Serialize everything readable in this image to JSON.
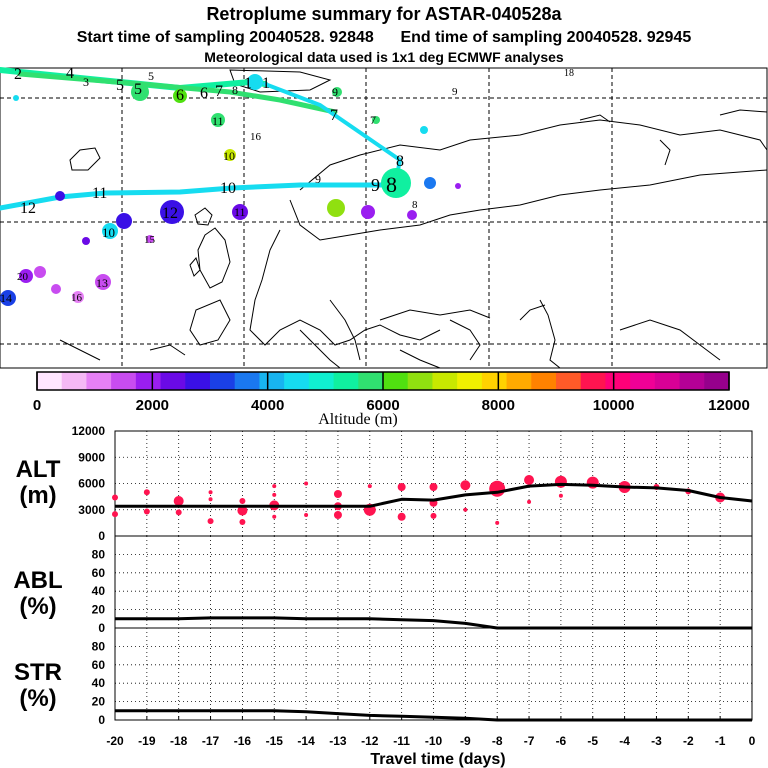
{
  "header": {
    "title": "Retroplume summary for ASTAR-040528a",
    "sampling_line": "Start time of sampling 20040528. 92848      End time of sampling 20040528. 92945",
    "met_line": "Meteorological data used is 1x1 deg ECMWF analyses"
  },
  "colorbar": {
    "label": "Altitude (m)",
    "tick_labels": [
      "0",
      "2000",
      "4000",
      "6000",
      "8000",
      "10000",
      "12000"
    ],
    "colors": [
      "#ffe6ff",
      "#f5b8f5",
      "#e680f5",
      "#c84cf0",
      "#9a1ef0",
      "#6a0ae6",
      "#3a10e6",
      "#1a40e6",
      "#1a78f0",
      "#18b4f0",
      "#16dcf0",
      "#10f0d0",
      "#10f0a0",
      "#30e070",
      "#50e010",
      "#90e010",
      "#c8e800",
      "#f0f000",
      "#ffd200",
      "#ffaa00",
      "#ff8200",
      "#ff5a28",
      "#ff1450",
      "#ff0078",
      "#f00096",
      "#d80096",
      "#b40096",
      "#96008c"
    ],
    "range": [
      0,
      12000
    ]
  },
  "map": {
    "trajectory_labels": [
      {
        "t": "1",
        "color": "#16dcf0"
      },
      {
        "t": "2",
        "color": "#10f0a0"
      },
      {
        "t": "3",
        "color": "#10f0a0"
      },
      {
        "t": "4",
        "color": "#10f0d0"
      },
      {
        "t": "5",
        "color": "#10f0a0"
      },
      {
        "t": "6",
        "color": "#50e010"
      },
      {
        "t": "7",
        "color": "#30e070"
      },
      {
        "t": "8",
        "color": "#30e070"
      },
      {
        "t": "9",
        "color": "#90e010"
      },
      {
        "t": "10",
        "color": "#16dcf0"
      },
      {
        "t": "11",
        "color": "#16dcf0"
      },
      {
        "t": "12",
        "color": "#18b4f0"
      }
    ],
    "cluster_labels": [
      {
        "t": "11",
        "color": "#30e070"
      },
      {
        "t": "10",
        "color": "#c8e800"
      },
      {
        "t": "16",
        "color": "#1a40e6"
      },
      {
        "t": "12",
        "color": "#3a10e6"
      },
      {
        "t": "11",
        "color": "#6a0ae6"
      },
      {
        "t": "13",
        "color": "#e680f5"
      },
      {
        "t": "14",
        "color": "#1a78f0"
      },
      {
        "t": "15",
        "color": "#c84cf0"
      },
      {
        "t": "16",
        "color": "#e680f5"
      },
      {
        "t": "18",
        "color": "#16dcf0"
      },
      {
        "t": "20",
        "color": "#9a1ef0"
      }
    ]
  },
  "chart_data": [
    {
      "type": "line",
      "panel": "ALT",
      "ylabel": "ALT\n(m)",
      "ylabel_line1": "ALT",
      "ylabel_line2": "(m)",
      "ylim": [
        0,
        12000
      ],
      "yticks": [
        0,
        3000,
        6000,
        9000,
        12000
      ],
      "ytick_labels": [
        "0",
        "3000",
        "6000",
        "9000",
        "12000"
      ],
      "x": [
        -20,
        -19,
        -18,
        -17,
        -16,
        -15,
        -14,
        -13,
        -12,
        -11,
        -10,
        -9,
        -8,
        -7,
        -6,
        -5,
        -4,
        -3,
        -2,
        -1,
        0
      ],
      "series": [
        {
          "name": "mean altitude",
          "values": [
            3400,
            3400,
            3400,
            3400,
            3400,
            3400,
            3400,
            3400,
            3400,
            4200,
            4100,
            4700,
            5000,
            5700,
            5900,
            5800,
            5600,
            5500,
            5200,
            4400,
            4000
          ]
        }
      ],
      "cluster_points": [
        {
          "x": -20,
          "y": 4400,
          "s": 3
        },
        {
          "x": -20,
          "y": 2500,
          "s": 3
        },
        {
          "x": -19,
          "y": 5000,
          "s": 3
        },
        {
          "x": -19,
          "y": 2800,
          "s": 3
        },
        {
          "x": -18,
          "y": 4000,
          "s": 5
        },
        {
          "x": -18,
          "y": 2700,
          "s": 3
        },
        {
          "x": -17,
          "y": 5000,
          "s": 2
        },
        {
          "x": -17,
          "y": 4200,
          "s": 2
        },
        {
          "x": -17,
          "y": 1700,
          "s": 3
        },
        {
          "x": -16,
          "y": 4000,
          "s": 3
        },
        {
          "x": -16,
          "y": 2900,
          "s": 5
        },
        {
          "x": -16,
          "y": 1600,
          "s": 3
        },
        {
          "x": -15,
          "y": 5700,
          "s": 2
        },
        {
          "x": -15,
          "y": 4700,
          "s": 2
        },
        {
          "x": -15,
          "y": 3500,
          "s": 5
        },
        {
          "x": -15,
          "y": 2200,
          "s": 2
        },
        {
          "x": -14,
          "y": 6000,
          "s": 2
        },
        {
          "x": -14,
          "y": 2400,
          "s": 2
        },
        {
          "x": -13,
          "y": 4800,
          "s": 4
        },
        {
          "x": -13,
          "y": 3400,
          "s": 4
        },
        {
          "x": -13,
          "y": 2400,
          "s": 4
        },
        {
          "x": -12,
          "y": 5700,
          "s": 2
        },
        {
          "x": -12,
          "y": 3000,
          "s": 6
        },
        {
          "x": -11,
          "y": 5600,
          "s": 4
        },
        {
          "x": -11,
          "y": 2200,
          "s": 4
        },
        {
          "x": -10,
          "y": 5600,
          "s": 4
        },
        {
          "x": -10,
          "y": 3800,
          "s": 4
        },
        {
          "x": -10,
          "y": 2300,
          "s": 3
        },
        {
          "x": -9,
          "y": 5800,
          "s": 5
        },
        {
          "x": -9,
          "y": 3000,
          "s": 2
        },
        {
          "x": -8,
          "y": 5400,
          "s": 8
        },
        {
          "x": -8,
          "y": 1500,
          "s": 2
        },
        {
          "x": -7,
          "y": 6400,
          "s": 5
        },
        {
          "x": -7,
          "y": 3900,
          "s": 2
        },
        {
          "x": -6,
          "y": 6200,
          "s": 6
        },
        {
          "x": -6,
          "y": 4600,
          "s": 2
        },
        {
          "x": -5,
          "y": 6100,
          "s": 6
        },
        {
          "x": -4,
          "y": 5600,
          "s": 6
        },
        {
          "x": -3,
          "y": 5600,
          "s": 3
        },
        {
          "x": -2,
          "y": 5100,
          "s": 3
        },
        {
          "x": -1,
          "y": 4400,
          "s": 5
        }
      ]
    },
    {
      "type": "line",
      "panel": "ABL",
      "ylabel": "ABL\n(%)",
      "ylabel_line1": "ABL",
      "ylabel_line2": "(%)",
      "ylim": [
        0,
        100
      ],
      "yticks": [
        0,
        20,
        40,
        60,
        80
      ],
      "ytick_labels": [
        "0",
        "20",
        "40",
        "60",
        "80"
      ],
      "x": [
        -20,
        -19,
        -18,
        -17,
        -16,
        -15,
        -14,
        -13,
        -12,
        -11,
        -10,
        -9,
        -8,
        -7,
        -6,
        -5,
        -4,
        -3,
        -2,
        -1,
        0
      ],
      "series": [
        {
          "name": "fraction in ABL",
          "values": [
            10,
            10,
            10,
            11,
            11,
            11,
            10,
            10,
            10,
            9,
            8,
            5,
            0,
            0,
            0,
            0,
            0,
            0,
            0,
            0,
            0
          ]
        }
      ]
    },
    {
      "type": "line",
      "panel": "STR",
      "ylabel": "STR\n(%)",
      "ylabel_line1": "STR",
      "ylabel_line2": "(%)",
      "ylim": [
        0,
        100
      ],
      "yticks": [
        0,
        20,
        40,
        60,
        80
      ],
      "ytick_labels": [
        "0",
        "20",
        "40",
        "60",
        "80"
      ],
      "x": [
        -20,
        -19,
        -18,
        -17,
        -16,
        -15,
        -14,
        -13,
        -12,
        -11,
        -10,
        -9,
        -8,
        -7,
        -6,
        -5,
        -4,
        -3,
        -2,
        -1,
        0
      ],
      "series": [
        {
          "name": "fraction in stratosphere",
          "values": [
            10,
            10,
            10,
            10,
            10,
            10,
            9,
            7,
            5,
            4,
            3,
            2,
            0,
            0,
            0,
            0,
            0,
            0,
            0,
            0,
            0
          ]
        }
      ]
    }
  ],
  "xaxis": {
    "label": "Travel time (days)",
    "ticks": [
      -20,
      -19,
      -18,
      -17,
      -16,
      -15,
      -14,
      -13,
      -12,
      -11,
      -10,
      -9,
      -8,
      -7,
      -6,
      -5,
      -4,
      -3,
      -2,
      -1,
      0
    ],
    "tick_labels": [
      "-20",
      "-19",
      "-18",
      "-17",
      "-16",
      "-15",
      "-14",
      "-13",
      "-12",
      "-11",
      "-10",
      "-9",
      "-8",
      "-7",
      "-6",
      "-5",
      "-4",
      "-3",
      "-2",
      "-1",
      "0"
    ]
  },
  "marker_color": "#ff1450"
}
